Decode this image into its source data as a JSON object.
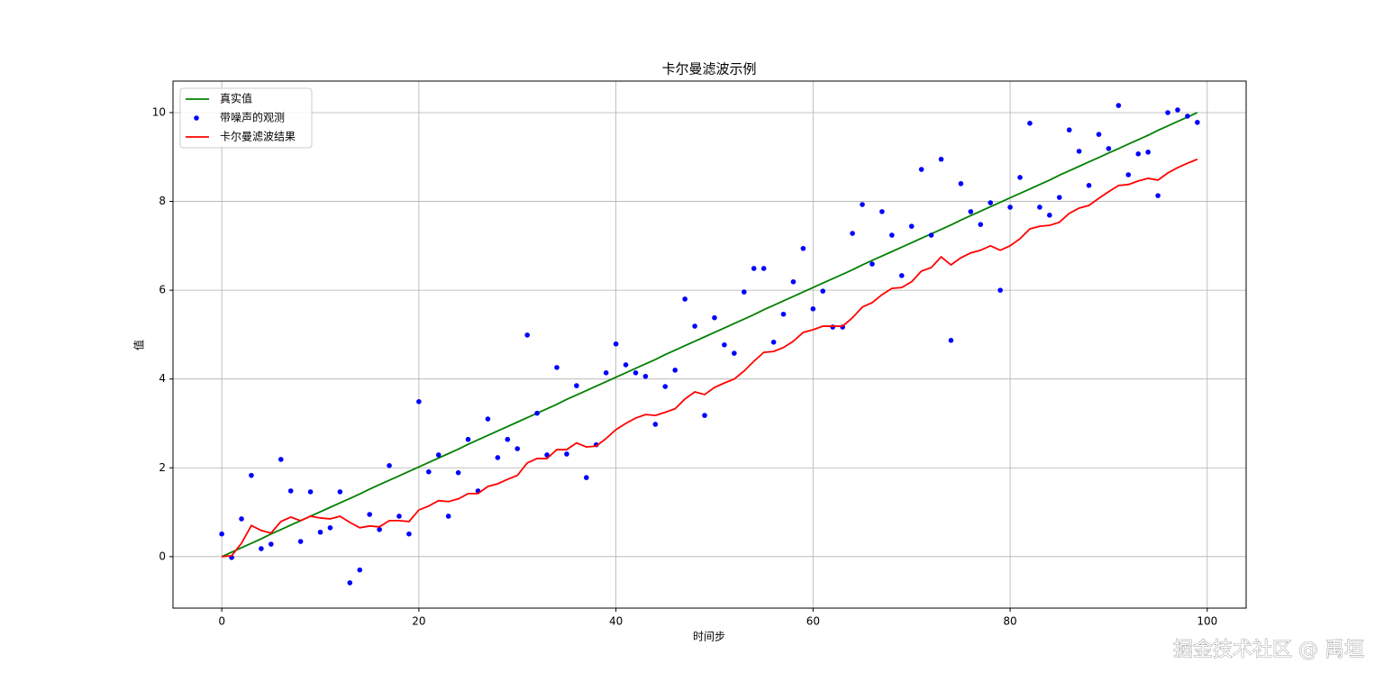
{
  "chart_data": {
    "type": "line",
    "title": "卡尔曼滤波示例",
    "x_label": "时间步",
    "y_label": "值",
    "x": [
      0,
      1,
      2,
      3,
      4,
      5,
      6,
      7,
      8,
      9,
      10,
      11,
      12,
      13,
      14,
      15,
      16,
      17,
      18,
      19,
      20,
      21,
      22,
      23,
      24,
      25,
      26,
      27,
      28,
      29,
      30,
      31,
      32,
      33,
      34,
      35,
      36,
      37,
      38,
      39,
      40,
      41,
      42,
      43,
      44,
      45,
      46,
      47,
      48,
      49,
      50,
      51,
      52,
      53,
      54,
      55,
      56,
      57,
      58,
      59,
      60,
      61,
      62,
      63,
      64,
      65,
      66,
      67,
      68,
      69,
      70,
      71,
      72,
      73,
      74,
      75,
      76,
      77,
      78,
      79,
      80,
      81,
      82,
      83,
      84,
      85,
      86,
      87,
      88,
      89,
      90,
      91,
      92,
      93,
      94,
      95,
      96,
      97,
      98,
      99
    ],
    "series": [
      {
        "name": "真实值",
        "type": "line",
        "color": "#008000",
        "values": [
          0,
          0.1,
          0.2,
          0.3,
          0.4,
          0.51,
          0.61,
          0.71,
          0.81,
          0.91,
          1.01,
          1.11,
          1.21,
          1.31,
          1.41,
          1.52,
          1.62,
          1.72,
          1.82,
          1.92,
          2.02,
          2.12,
          2.22,
          2.32,
          2.42,
          2.53,
          2.63,
          2.73,
          2.83,
          2.93,
          3.03,
          3.13,
          3.23,
          3.33,
          3.43,
          3.54,
          3.64,
          3.74,
          3.84,
          3.94,
          4.04,
          4.14,
          4.24,
          4.34,
          4.44,
          4.55,
          4.65,
          4.75,
          4.85,
          4.95,
          5.05,
          5.15,
          5.25,
          5.35,
          5.45,
          5.56,
          5.66,
          5.76,
          5.86,
          5.96,
          6.06,
          6.16,
          6.26,
          6.36,
          6.46,
          6.57,
          6.67,
          6.77,
          6.87,
          6.97,
          7.07,
          7.17,
          7.27,
          7.37,
          7.47,
          7.58,
          7.68,
          7.78,
          7.88,
          7.98,
          8.08,
          8.18,
          8.28,
          8.38,
          8.48,
          8.59,
          8.69,
          8.79,
          8.89,
          8.99,
          9.09,
          9.19,
          9.29,
          9.39,
          9.49,
          9.6,
          9.7,
          9.8,
          9.9,
          10.0
        ]
      },
      {
        "name": "带噪声的观测",
        "type": "scatter",
        "color": "#0000ff",
        "values": [
          0.51,
          -0.02,
          0.85,
          1.83,
          0.18,
          0.28,
          2.19,
          1.48,
          0.34,
          1.46,
          0.55,
          0.65,
          1.46,
          -0.59,
          -0.3,
          0.95,
          0.61,
          2.05,
          0.91,
          0.51,
          3.49,
          1.91,
          2.29,
          0.91,
          1.89,
          2.64,
          1.48,
          3.1,
          2.23,
          2.64,
          2.43,
          4.99,
          3.23,
          2.29,
          4.26,
          2.31,
          3.85,
          1.78,
          2.52,
          4.14,
          4.79,
          4.32,
          4.14,
          4.06,
          2.98,
          3.83,
          4.2,
          5.8,
          5.19,
          3.18,
          5.38,
          4.77,
          4.58,
          5.96,
          6.49,
          6.49,
          4.83,
          5.46,
          6.19,
          6.94,
          5.58,
          5.98,
          5.17,
          5.17,
          7.28,
          7.93,
          6.59,
          7.77,
          7.24,
          6.33,
          7.44,
          8.72,
          7.24,
          8.95,
          4.87,
          8.4,
          7.77,
          7.48,
          7.97,
          6.0,
          7.87,
          8.54,
          9.76,
          7.87,
          7.69,
          8.09,
          9.61,
          9.13,
          8.36,
          9.51,
          9.19,
          10.16,
          8.6,
          9.07,
          9.11,
          8.13,
          10.0,
          10.06,
          9.92,
          9.78
        ]
      },
      {
        "name": "卡尔曼滤波结果",
        "type": "line",
        "color": "#ff0000",
        "values": [
          0,
          0.02,
          0.3,
          0.7,
          0.59,
          0.53,
          0.79,
          0.89,
          0.81,
          0.91,
          0.87,
          0.85,
          0.91,
          0.77,
          0.65,
          0.69,
          0.67,
          0.81,
          0.81,
          0.79,
          1.05,
          1.14,
          1.26,
          1.24,
          1.3,
          1.42,
          1.42,
          1.58,
          1.64,
          1.74,
          1.83,
          2.11,
          2.21,
          2.21,
          2.41,
          2.41,
          2.56,
          2.47,
          2.49,
          2.66,
          2.86,
          3.0,
          3.12,
          3.2,
          3.18,
          3.25,
          3.33,
          3.55,
          3.71,
          3.65,
          3.81,
          3.91,
          4.0,
          4.18,
          4.4,
          4.6,
          4.62,
          4.71,
          4.85,
          5.05,
          5.11,
          5.19,
          5.19,
          5.19,
          5.38,
          5.62,
          5.72,
          5.9,
          6.04,
          6.06,
          6.19,
          6.43,
          6.51,
          6.75,
          6.57,
          6.73,
          6.84,
          6.9,
          7.0,
          6.9,
          7.0,
          7.16,
          7.38,
          7.44,
          7.46,
          7.53,
          7.73,
          7.85,
          7.91,
          8.07,
          8.22,
          8.36,
          8.38,
          8.46,
          8.52,
          8.48,
          8.64,
          8.76,
          8.86,
          8.95
        ]
      }
    ],
    "xlim": [
      -4.95,
      103.95
    ],
    "xticks": [
      0,
      20,
      40,
      60,
      80,
      100
    ],
    "ylim": [
      -1.16,
      10.71
    ],
    "yticks": [
      0,
      2,
      4,
      6,
      8,
      10
    ],
    "grid": true,
    "legend": "upper left",
    "watermark": "掘金技术社区 @ 禹垣"
  }
}
